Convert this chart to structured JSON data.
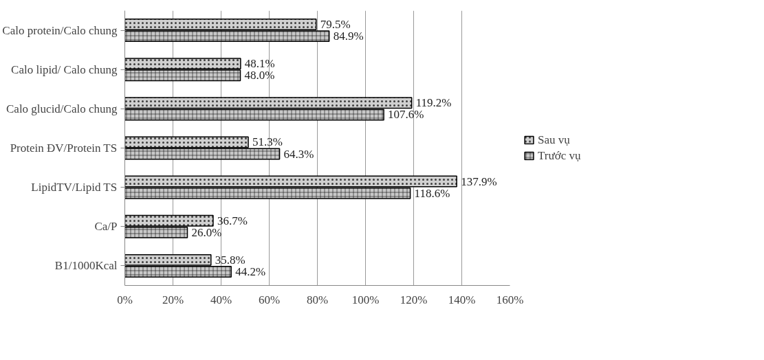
{
  "chart_data": {
    "type": "bar",
    "orientation": "horizontal",
    "categories": [
      "Calo protein/Calo chung",
      "Calo lipid/ Calo chung",
      "Calo glucid/Calo chung",
      "Protein ĐV/Protein TS",
      "LipidTV/Lipid TS",
      "Ca/P",
      "B1/1000Kcal"
    ],
    "series": [
      {
        "name": "Sau vụ",
        "color": "#d0d0d0",
        "values": [
          79.5,
          48.1,
          119.2,
          51.3,
          137.9,
          36.7,
          35.8
        ],
        "value_labels": [
          "79.5%",
          "48.1%",
          "119.2%",
          "51.3%",
          "137.9%",
          "36.7%",
          "35.8%"
        ]
      },
      {
        "name": "Trước vụ",
        "color": "#c8c8c8",
        "values": [
          84.9,
          48.0,
          107.6,
          64.3,
          118.6,
          26.0,
          44.2
        ],
        "value_labels": [
          "84.9%",
          "48.0%",
          "107.6%",
          "64.3%",
          "118.6%",
          "26.0%",
          "44.2%"
        ]
      }
    ],
    "xlim": [
      0,
      160
    ],
    "xticks": [
      {
        "value": 0,
        "label": "0%"
      },
      {
        "value": 20,
        "label": "20%"
      },
      {
        "value": 40,
        "label": "40%"
      },
      {
        "value": 60,
        "label": "60%"
      },
      {
        "value": 80,
        "label": "80%"
      },
      {
        "value": 100,
        "label": "100%"
      },
      {
        "value": 120,
        "label": "120%"
      },
      {
        "value": 140,
        "label": "140%"
      },
      {
        "value": 160,
        "label": "160%"
      }
    ],
    "grid": "x",
    "legend": "right"
  }
}
